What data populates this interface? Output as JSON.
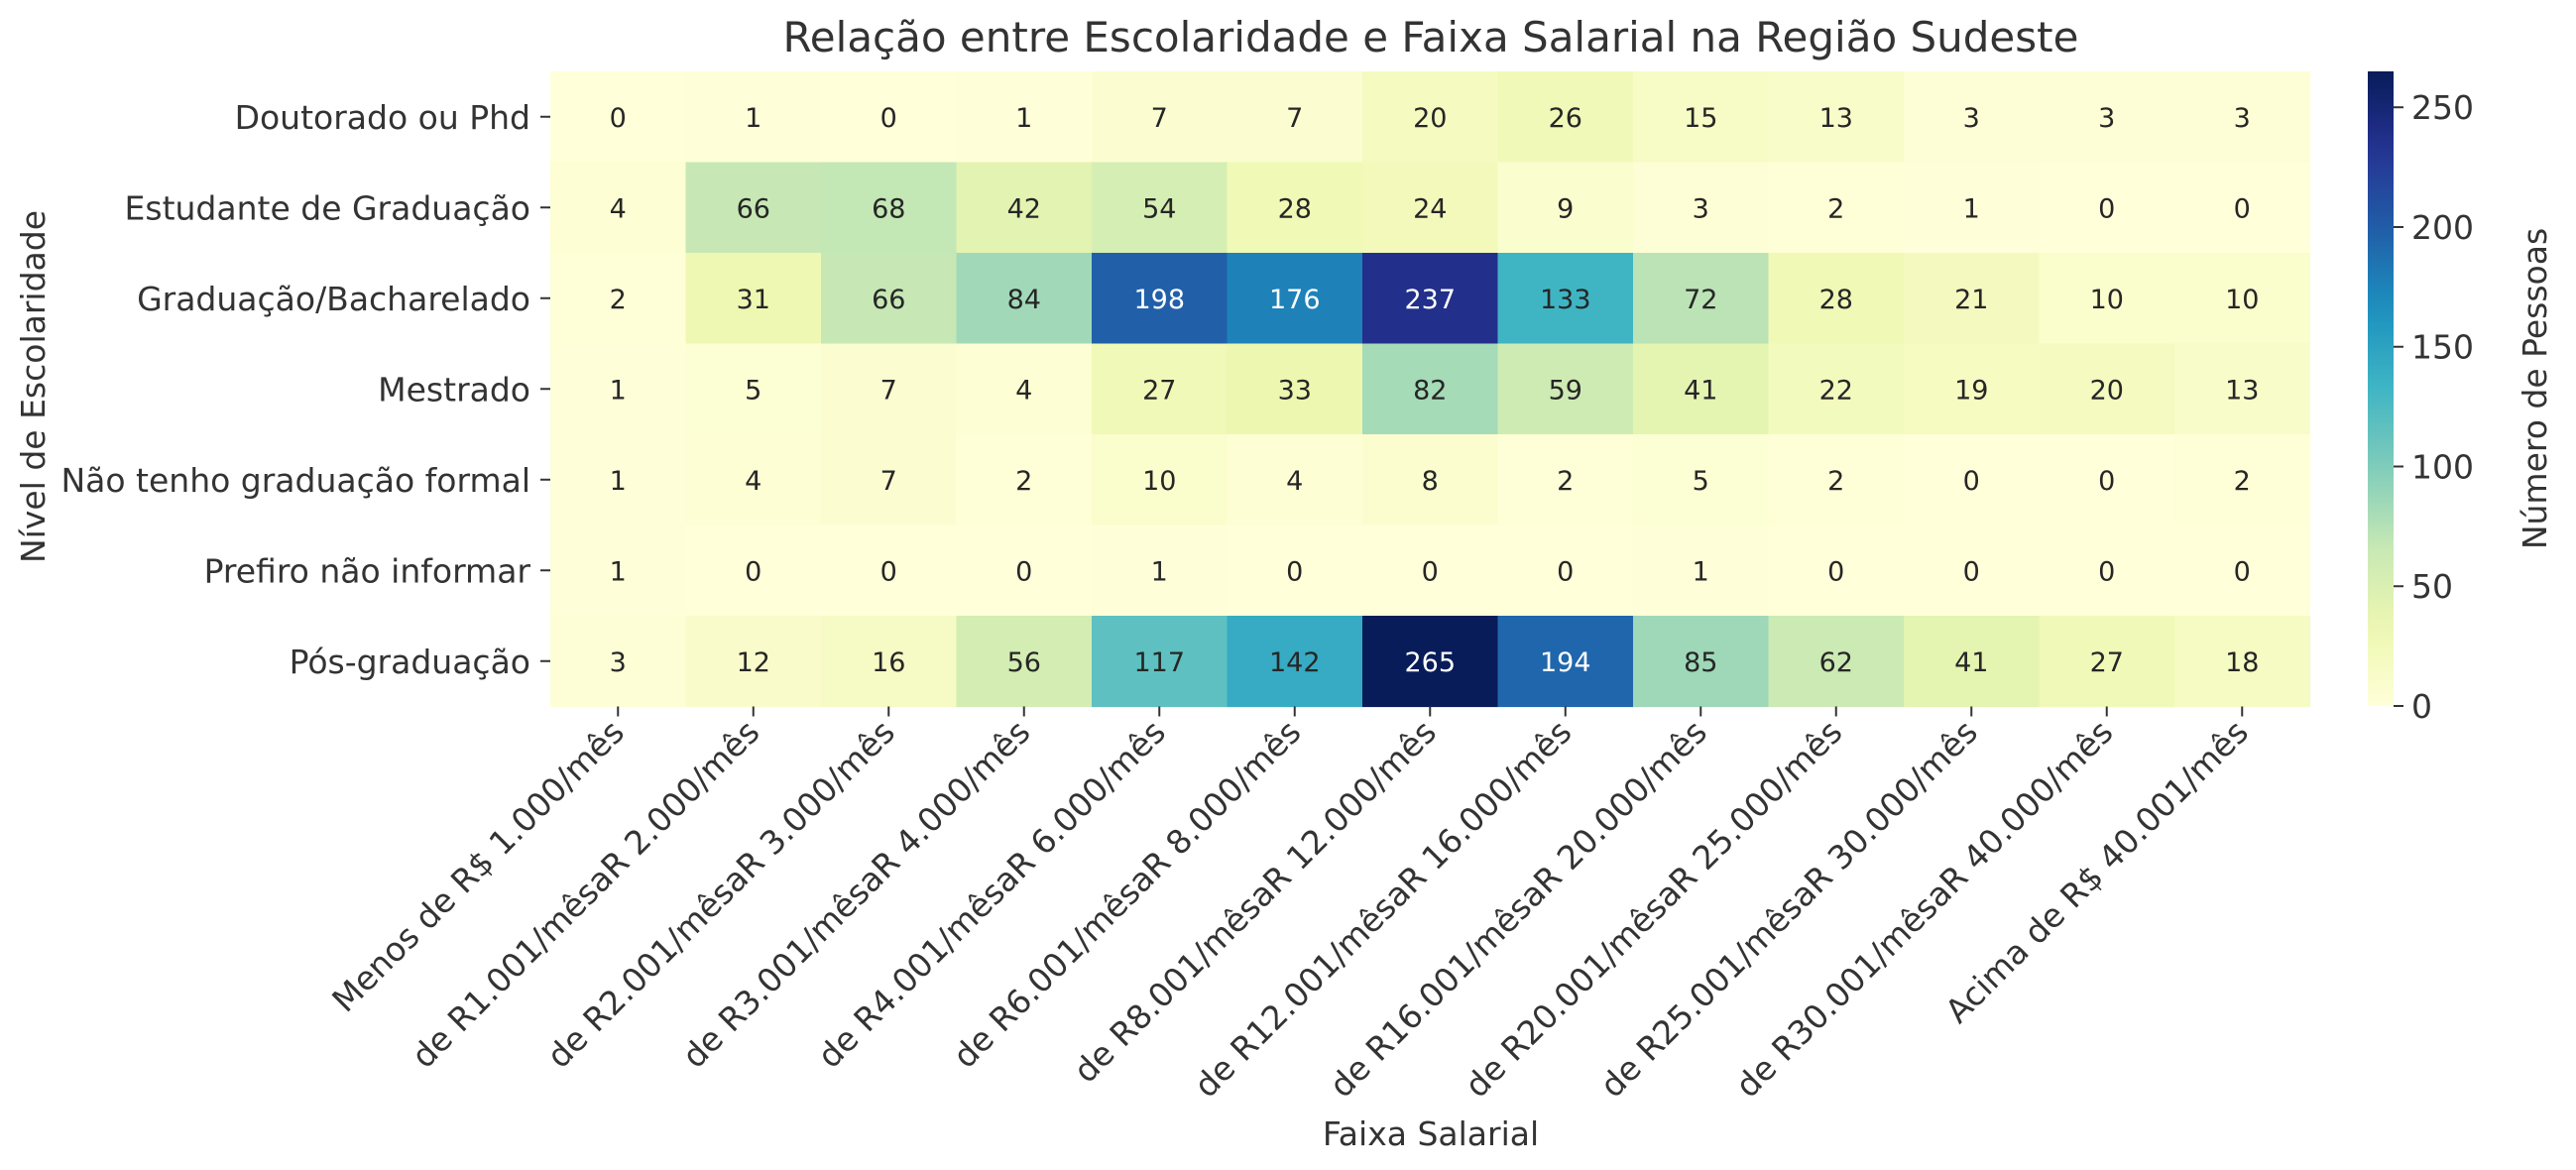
{
  "chart_data": {
    "type": "heatmap",
    "title": "Relação entre Escolaridade e Faixa Salarial na Região Sudeste",
    "xlabel": "Faixa Salarial",
    "ylabel": "Nível de Escolaridade",
    "colorbar_label": "Número de Pessoas",
    "colormap": "YlGnBu",
    "vmin": 0,
    "vmax": 265,
    "colorbar_ticks": [
      0,
      50,
      100,
      150,
      200,
      250
    ],
    "x_categories": [
      "Menos de R$ 1.000/mês",
      "de R1.001/mêsaR 2.000/mês",
      "de R2.001/mêsaR 3.000/mês",
      "de R3.001/mêsaR 4.000/mês",
      "de R4.001/mêsaR 6.000/mês",
      "de R6.001/mêsaR 8.000/mês",
      "de R8.001/mêsaR 12.000/mês",
      "de R12.001/mêsaR 16.000/mês",
      "de R16.001/mêsaR 20.000/mês",
      "de R20.001/mêsaR 25.000/mês",
      "de R25.001/mêsaR 30.000/mês",
      "de R30.001/mêsaR 40.000/mês",
      "Acima de R$ 40.001/mês"
    ],
    "y_categories": [
      "Doutorado ou Phd",
      "Estudante de Graduação",
      "Graduação/Bacharelado",
      "Mestrado",
      "Não tenho graduação formal",
      "Prefiro não informar",
      "Pós-graduação"
    ],
    "values": [
      [
        0,
        1,
        0,
        1,
        7,
        7,
        20,
        26,
        15,
        13,
        3,
        3,
        3
      ],
      [
        4,
        66,
        68,
        42,
        54,
        28,
        24,
        9,
        3,
        2,
        1,
        0,
        0
      ],
      [
        2,
        31,
        66,
        84,
        198,
        176,
        237,
        133,
        72,
        28,
        21,
        10,
        10
      ],
      [
        1,
        5,
        7,
        4,
        27,
        33,
        82,
        59,
        41,
        22,
        19,
        20,
        13
      ],
      [
        1,
        4,
        7,
        2,
        10,
        4,
        8,
        2,
        5,
        2,
        0,
        0,
        2
      ],
      [
        1,
        0,
        0,
        0,
        1,
        0,
        0,
        0,
        1,
        0,
        0,
        0,
        0
      ],
      [
        3,
        12,
        16,
        56,
        117,
        142,
        265,
        194,
        85,
        62,
        41,
        27,
        18
      ]
    ]
  }
}
